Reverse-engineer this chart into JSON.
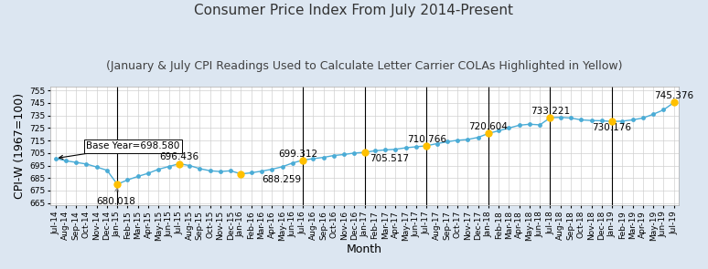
{
  "title": "Consumer Price Index From July 2014-Present",
  "subtitle": "(January & July CPI Readings Used to Calculate Letter Carrier COLAs Highlighted in Yellow)",
  "xlabel": "Month",
  "ylabel": "CPI-W (1967=100)",
  "ylim": [
    663,
    758
  ],
  "yticks": [
    665,
    675,
    685,
    695,
    705,
    715,
    725,
    735,
    745,
    755
  ],
  "background_color": "#dce6f1",
  "plot_bg_color": "#ffffff",
  "line_color": "#4bacd6",
  "marker_color_default": "#4bacd6",
  "marker_color_highlight": "#FFC000",
  "months": [
    "Jul-14",
    "Aug-14",
    "Sep-14",
    "Oct-14",
    "Nov-14",
    "Dec-14",
    "Jan-15",
    "Feb-15",
    "Mar-15",
    "Apr-15",
    "May-15",
    "Jun-15",
    "Jul-15",
    "Aug-15",
    "Sep-15",
    "Oct-15",
    "Nov-15",
    "Dec-15",
    "Jan-16",
    "Feb-16",
    "Mar-16",
    "Apr-16",
    "May-16",
    "Jun-16",
    "Jul-16",
    "Aug-16",
    "Sep-16",
    "Oct-16",
    "Nov-16",
    "Dec-16",
    "Jan-17",
    "Feb-17",
    "Mar-17",
    "Apr-17",
    "May-17",
    "Jun-17",
    "Jul-17",
    "Aug-17",
    "Sep-17",
    "Oct-17",
    "Nov-17",
    "Dec-17",
    "Jan-18",
    "Feb-18",
    "Mar-18",
    "Apr-18",
    "May-18",
    "Jun-18",
    "Jul-18",
    "Aug-18",
    "Sep-18",
    "Oct-18",
    "Nov-18",
    "Dec-18",
    "Jan-19",
    "Feb-19",
    "Mar-19",
    "Apr-19",
    "May-19",
    "Jun-19",
    "Jul-19"
  ],
  "values": [
    700.7,
    698.8,
    697.5,
    696.2,
    693.8,
    691.2,
    680.018,
    683.5,
    686.3,
    688.8,
    692.0,
    694.2,
    696.436,
    695.0,
    692.5,
    690.8,
    690.2,
    690.8,
    688.259,
    689.2,
    690.5,
    692.0,
    694.0,
    697.0,
    699.312,
    700.5,
    701.5,
    703.0,
    703.8,
    705.0,
    705.517,
    706.8,
    707.5,
    708.0,
    709.2,
    710.0,
    710.766,
    712.5,
    714.0,
    715.2,
    715.8,
    717.5,
    720.604,
    722.8,
    725.0,
    727.2,
    728.0,
    727.5,
    733.221,
    733.5,
    733.0,
    731.5,
    731.0,
    730.8,
    730.176,
    730.5,
    731.5,
    733.0,
    736.0,
    739.5,
    745.376
  ],
  "highlighted_indices": [
    6,
    12,
    18,
    24,
    30,
    36,
    42,
    48,
    54,
    60
  ],
  "vline_indices": [
    6,
    24,
    30,
    36,
    42,
    48,
    54
  ],
  "title_fontsize": 11,
  "subtitle_fontsize": 9,
  "axis_label_fontsize": 9,
  "tick_fontsize": 6.5,
  "ann_fontsize": 7.5
}
